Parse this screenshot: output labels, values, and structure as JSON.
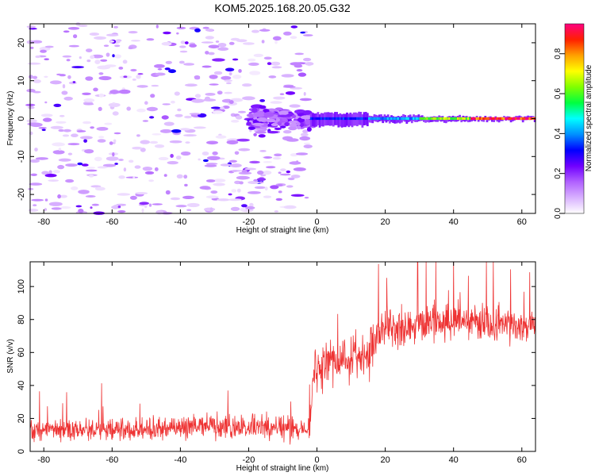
{
  "chart_data": [
    {
      "type": "heatmap",
      "title": "KOM5.2025.168.20.05.G32",
      "xlabel": "Height of straight line (km)",
      "ylabel": "Frequency (Hz)",
      "xlim": [
        -84,
        64
      ],
      "ylim": [
        -25,
        25
      ],
      "xticks": [
        "-80",
        "-60",
        "-40",
        "-20",
        "0",
        "20",
        "40",
        "60"
      ],
      "yticks": [
        "-20",
        "-10",
        "0",
        "10",
        "20"
      ],
      "colorbar": {
        "label": "Normalized spectral amplitude",
        "range": [
          0.0,
          0.95
        ],
        "ticks": [
          "0.0",
          "0.2",
          "0.4",
          "0.6",
          "0.8"
        ],
        "colormap": [
          "#ffffff",
          "#d8b0ff",
          "#b060ff",
          "#7000ff",
          "#0000ff",
          "#0090ff",
          "#00ffff",
          "#00ff40",
          "#80ff00",
          "#ffff00",
          "#ffa000",
          "#ff2000",
          "#ff0080"
        ]
      },
      "features": {
        "noise_region_x": [
          -84,
          -2
        ],
        "noise_amplitude": [
          0.02,
          0.2
        ],
        "transition_x": [
          -20,
          0
        ],
        "transition_amplitude": [
          0.1,
          0.25
        ],
        "signal_band_freq": [
          -1.0,
          1.0
        ],
        "signal_segments": [
          {
            "x": [
              -2,
              15
            ],
            "freq": [
              -2.0,
              1.5
            ],
            "amplitude": 0.35
          },
          {
            "x": [
              15,
              30
            ],
            "freq": [
              -1.0,
              0.8
            ],
            "amplitude": 0.45
          },
          {
            "x": [
              30,
              45
            ],
            "freq": [
              -0.8,
              0.6
            ],
            "amplitude": 0.7
          },
          {
            "x": [
              45,
              64
            ],
            "freq": [
              -0.6,
              0.4
            ],
            "amplitude": 0.95
          }
        ]
      }
    },
    {
      "type": "line",
      "xlabel": "Height of straight line (km)",
      "ylabel": "SNR (v/v)",
      "xlim": [
        -84,
        64
      ],
      "ylim": [
        0,
        115
      ],
      "xticks": [
        "-80",
        "-60",
        "-40",
        "-20",
        "0",
        "20",
        "40",
        "60"
      ],
      "yticks": [
        "0",
        "20",
        "40",
        "60",
        "80",
        "100"
      ],
      "color": "#ee3333",
      "trend": [
        {
          "x": -84,
          "y": 13
        },
        {
          "x": -60,
          "y": 13
        },
        {
          "x": -40,
          "y": 14
        },
        {
          "x": -20,
          "y": 15
        },
        {
          "x": -2,
          "y": 13
        },
        {
          "x": -1,
          "y": 48
        },
        {
          "x": 5,
          "y": 55
        },
        {
          "x": 10,
          "y": 57
        },
        {
          "x": 15,
          "y": 58
        },
        {
          "x": 20,
          "y": 75
        },
        {
          "x": 30,
          "y": 78
        },
        {
          "x": 40,
          "y": 79
        },
        {
          "x": 50,
          "y": 77
        },
        {
          "x": 64,
          "y": 76
        }
      ],
      "noise_spread": [
        {
          "x": -84,
          "spread": 14
        },
        {
          "x": -2,
          "spread": 16
        },
        {
          "x": -1,
          "spread": 26
        },
        {
          "x": 20,
          "spread": 30
        },
        {
          "x": 64,
          "spread": 20
        }
      ],
      "peak": {
        "x": 29.5,
        "y": 116
      }
    }
  ]
}
